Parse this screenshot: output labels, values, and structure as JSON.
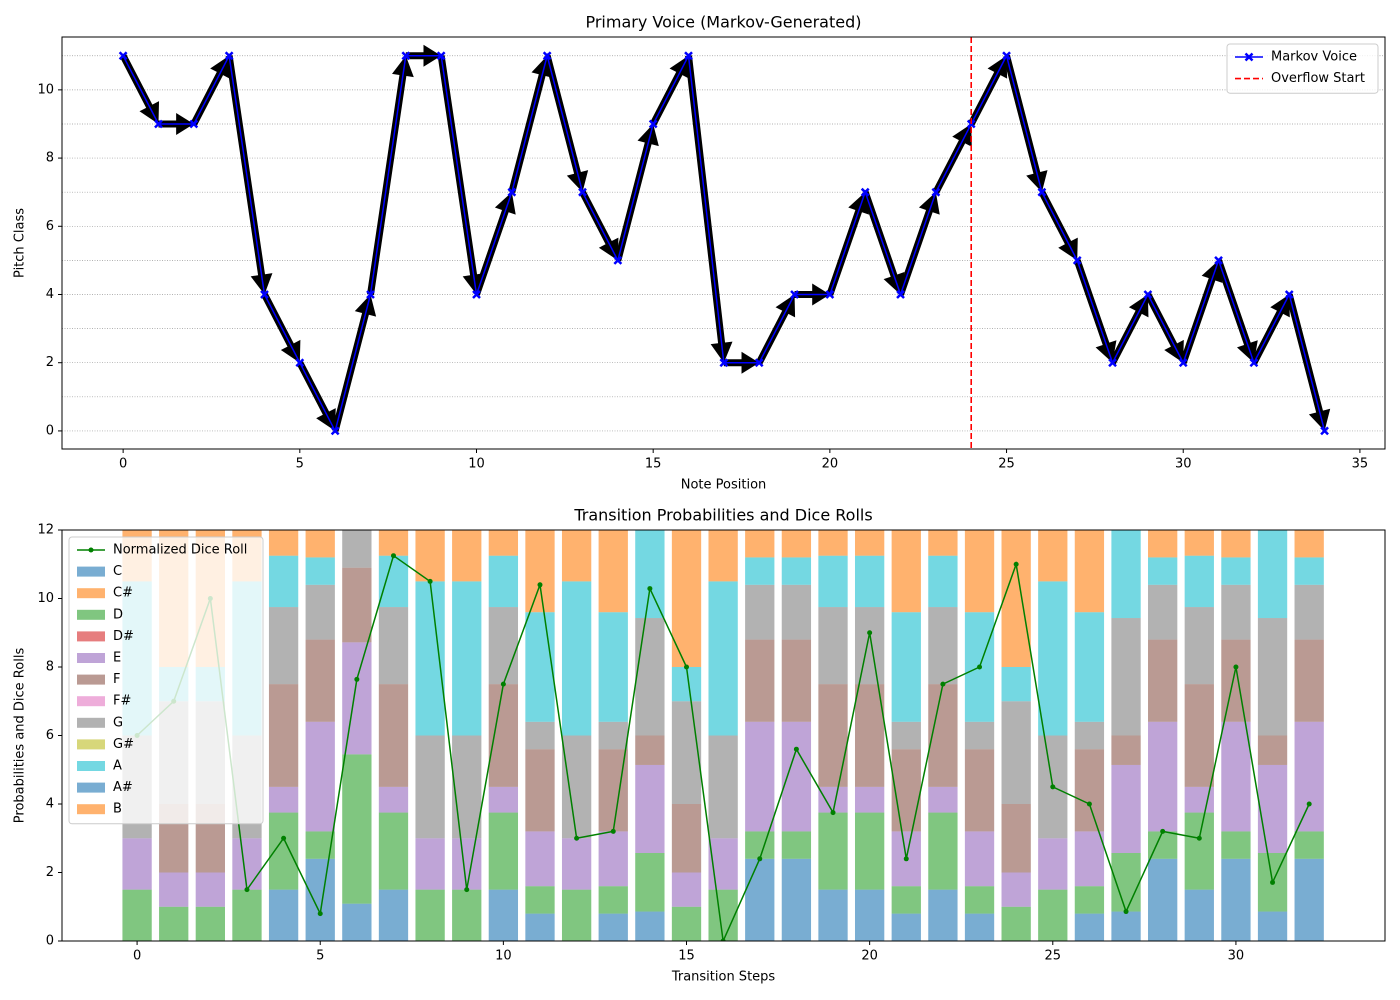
{
  "chart_data": [
    {
      "type": "line",
      "title": "Primary Voice (Markov-Generated)",
      "x_label": "Note Position",
      "y_label": "Pitch Class",
      "x": [
        0,
        1,
        2,
        3,
        4,
        5,
        6,
        7,
        8,
        9,
        10,
        11,
        12,
        13,
        14,
        15,
        16,
        17,
        18,
        19,
        20,
        21,
        22,
        23,
        24,
        25,
        26,
        27,
        28,
        29,
        30,
        31,
        32,
        33,
        34
      ],
      "series": [
        {
          "name": "Markov Voice",
          "color": "#0000ff",
          "values": [
            11,
            9,
            9,
            11,
            4,
            2,
            0,
            4,
            11,
            11,
            4,
            7,
            11,
            7,
            5,
            9,
            11,
            2,
            2,
            4,
            4,
            7,
            4,
            7,
            9,
            11,
            7,
            5,
            2,
            4,
            2,
            5,
            2,
            4,
            0
          ]
        }
      ],
      "vlines": [
        {
          "name": "Overflow Start",
          "x": 24,
          "color": "#ff0000"
        }
      ],
      "xlim": [
        -1.73,
        35.71
      ],
      "ylim": [
        -0.53,
        11.55
      ],
      "xticks": [
        0,
        5,
        10,
        15,
        20,
        25,
        30,
        35
      ],
      "yticks": [
        0,
        2,
        4,
        6,
        8,
        10
      ],
      "ygrid": [
        0,
        1,
        2,
        3,
        4,
        5,
        6,
        7,
        8,
        9,
        10,
        11
      ],
      "legend": "upper right"
    },
    {
      "type": "bar",
      "stacked": true,
      "title": "Transition Probabilities and Dice Rolls",
      "x_label": "Transition Steps",
      "y_label": "Probabilities and Dice Rolls",
      "x": [
        0,
        1,
        2,
        3,
        4,
        5,
        6,
        7,
        8,
        9,
        10,
        11,
        12,
        13,
        14,
        15,
        16,
        17,
        18,
        19,
        20,
        21,
        22,
        23,
        24,
        25,
        26,
        27,
        28,
        29,
        30,
        31,
        32
      ],
      "series": [
        {
          "name": "C",
          "color": "#1f77b4",
          "values": [
            0,
            0,
            0,
            0,
            1.5,
            2.4,
            1.09,
            1.5,
            0,
            0,
            1.5,
            0.8,
            0,
            0.8,
            0.86,
            0,
            0,
            2.4,
            2.4,
            1.5,
            1.5,
            0.8,
            1.5,
            0.8,
            0,
            0,
            0.8,
            0.86,
            2.4,
            1.5,
            2.4,
            0.86,
            2.4
          ]
        },
        {
          "name": "C#",
          "color": "#ff7f0e",
          "values": [
            0,
            0,
            0,
            0,
            0,
            0,
            0,
            0,
            0,
            0,
            0,
            0,
            0,
            0,
            0,
            0,
            0,
            0,
            0,
            0,
            0,
            0,
            0,
            0,
            0,
            0,
            0,
            0,
            0,
            0,
            0,
            0,
            0
          ]
        },
        {
          "name": "D",
          "color": "#2ca02c",
          "values": [
            1.5,
            1,
            1,
            1.5,
            2.25,
            0.8,
            4.36,
            2.25,
            1.5,
            1.5,
            2.25,
            0.8,
            1.5,
            0.8,
            1.71,
            1,
            1.5,
            0.8,
            0.8,
            2.25,
            2.25,
            0.8,
            2.25,
            0.8,
            1,
            1.5,
            0.8,
            1.71,
            0.8,
            2.25,
            0.8,
            1.71,
            0.8
          ]
        },
        {
          "name": "D#",
          "color": "#d62728",
          "values": [
            0,
            0,
            0,
            0,
            0,
            0,
            0,
            0,
            0,
            0,
            0,
            0,
            0,
            0,
            0,
            0,
            0,
            0,
            0,
            0,
            0,
            0,
            0,
            0,
            0,
            0,
            0,
            0,
            0,
            0,
            0,
            0,
            0
          ]
        },
        {
          "name": "E",
          "color": "#9467bd",
          "values": [
            1.5,
            1,
            1,
            1.5,
            0.75,
            3.2,
            3.27,
            0.75,
            1.5,
            1.5,
            0.75,
            1.6,
            1.5,
            1.6,
            2.57,
            1,
            1.5,
            3.2,
            3.2,
            0.75,
            0.75,
            1.6,
            0.75,
            1.6,
            1,
            1.5,
            1.6,
            2.57,
            3.2,
            0.75,
            3.2,
            2.57,
            3.2
          ]
        },
        {
          "name": "F",
          "color": "#8c564b",
          "values": [
            0,
            2,
            2,
            0,
            3,
            2.4,
            2.18,
            3,
            0,
            0,
            3,
            2.4,
            0,
            2.4,
            0.86,
            2,
            0,
            2.4,
            2.4,
            3,
            3,
            2.4,
            3,
            2.4,
            2,
            0,
            2.4,
            0.86,
            2.4,
            3,
            2.4,
            0.86,
            2.4
          ]
        },
        {
          "name": "F#",
          "color": "#e377c2",
          "values": [
            0,
            0,
            0,
            0,
            0,
            0,
            0,
            0,
            0,
            0,
            0,
            0,
            0,
            0,
            0,
            0,
            0,
            0,
            0,
            0,
            0,
            0,
            0,
            0,
            0,
            0,
            0,
            0,
            0,
            0,
            0,
            0,
            0
          ]
        },
        {
          "name": "G",
          "color": "#7f7f7f",
          "values": [
            3,
            3,
            3,
            3,
            2.25,
            1.6,
            1.09,
            2.25,
            3,
            3,
            2.25,
            0.8,
            3,
            0.8,
            3.43,
            3,
            3,
            1.6,
            1.6,
            2.25,
            2.25,
            0.8,
            2.25,
            0.8,
            3,
            3,
            0.8,
            3.43,
            1.6,
            2.25,
            1.6,
            3.43,
            1.6
          ]
        },
        {
          "name": "G#",
          "color": "#bcbd22",
          "values": [
            0,
            0,
            0,
            0,
            0,
            0,
            0,
            0,
            0,
            0,
            0,
            0,
            0,
            0,
            0,
            0,
            0,
            0,
            0,
            0,
            0,
            0,
            0,
            0,
            0,
            0,
            0,
            0,
            0,
            0,
            0,
            0,
            0
          ]
        },
        {
          "name": "A",
          "color": "#17becf",
          "values": [
            4.5,
            1,
            1,
            4.5,
            1.5,
            0.8,
            0,
            1.5,
            4.5,
            4.5,
            1.5,
            3.2,
            4.5,
            3.2,
            2.57,
            1,
            4.5,
            0.8,
            0.8,
            1.5,
            1.5,
            3.2,
            1.5,
            3.2,
            1,
            4.5,
            3.2,
            2.57,
            0.8,
            1.5,
            0.8,
            2.57,
            0.8
          ]
        },
        {
          "name": "A#",
          "color": "#1f77b4",
          "values": [
            0,
            0,
            0,
            0,
            0,
            0,
            0,
            0,
            0,
            0,
            0,
            0,
            0,
            0,
            0,
            0,
            0,
            0,
            0,
            0,
            0,
            0,
            0,
            0,
            0,
            0,
            0,
            0,
            0,
            0,
            0,
            0,
            0
          ]
        },
        {
          "name": "B",
          "color": "#ff7f0e",
          "values": [
            1.5,
            4,
            4,
            1.5,
            0.75,
            0.8,
            0,
            0.75,
            1.5,
            1.5,
            0.75,
            2.4,
            1.5,
            2.4,
            0,
            4,
            1.5,
            0.8,
            0.8,
            0.75,
            0.75,
            2.4,
            0.75,
            2.4,
            4,
            1.5,
            2.4,
            0,
            0.8,
            0.75,
            0.8,
            0,
            0.8
          ]
        },
        {
          "name": "Normalized Dice Roll",
          "type": "line",
          "color": "#008000",
          "values": [
            6,
            7,
            10,
            1.5,
            3,
            0.8,
            7.64,
            11.25,
            10.5,
            1.5,
            7.5,
            10.4,
            3,
            3.2,
            10.29,
            8,
            0,
            2.4,
            5.6,
            3.75,
            9,
            2.4,
            7.5,
            8,
            11,
            4.5,
            4,
            0.86,
            3.2,
            3,
            8,
            1.71,
            4
          ]
        }
      ],
      "xlim": [
        -2.05,
        34.07
      ],
      "ylim": [
        0,
        12
      ],
      "xticks": [
        0,
        5,
        10,
        15,
        20,
        25,
        30
      ],
      "yticks": [
        0,
        2,
        4,
        6,
        8,
        10,
        12
      ],
      "legend": "upper left"
    }
  ]
}
